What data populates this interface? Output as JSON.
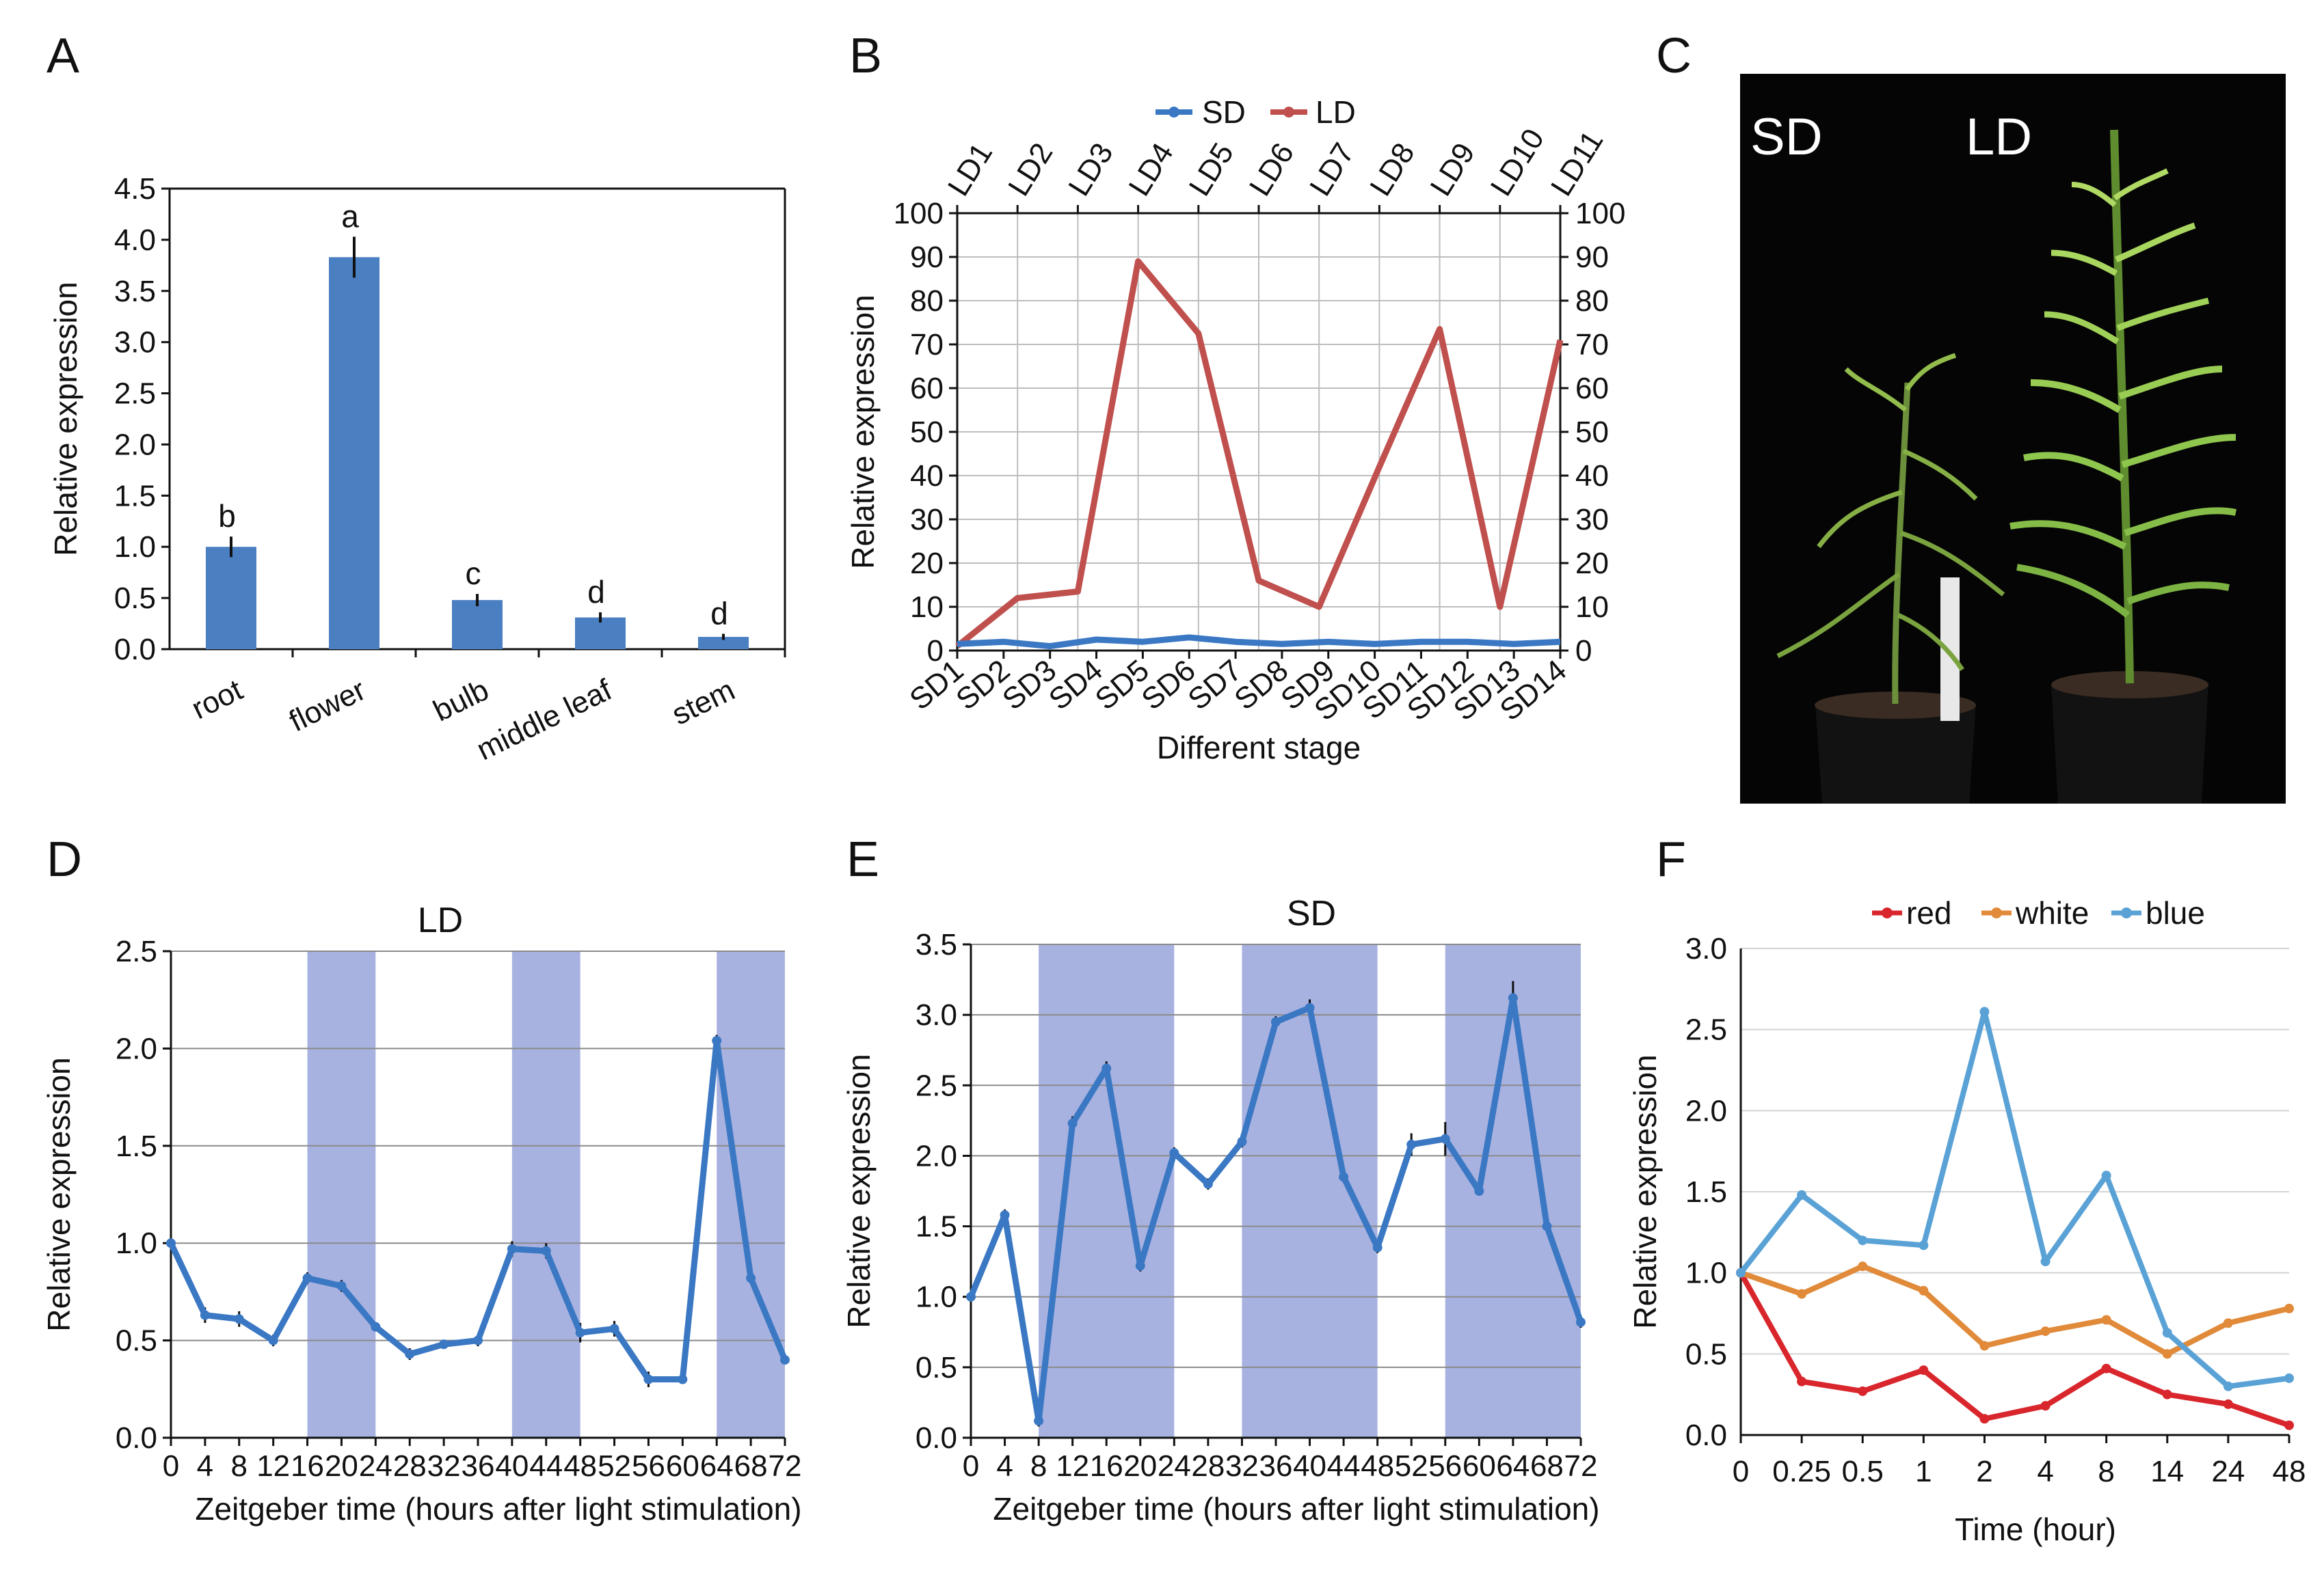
{
  "colors": {
    "bar_blue": "#4a7fc1",
    "line_blue": "#3b78c4",
    "line_red": "#c0504d",
    "line_orange": "#e08a3a",
    "line_light_blue": "#5aa2d6",
    "line_crimson": "#d9262c",
    "night_shade": "#a8b2e0",
    "photo_bg": "#050505"
  },
  "chart_data": [
    {
      "panel": "A",
      "type": "bar",
      "categories": [
        "root",
        "flower",
        "bulb",
        "middle leaf",
        "stem"
      ],
      "values": [
        1.0,
        3.83,
        0.48,
        0.31,
        0.12
      ],
      "errors": [
        0.1,
        0.2,
        0.06,
        0.05,
        0.03
      ],
      "significance": [
        "b",
        "a",
        "c",
        "d",
        "d"
      ],
      "ylabel": "Relative expression",
      "ylim": [
        0,
        4.5
      ],
      "yticks": [
        "0.0",
        "0.5",
        "1.0",
        "1.5",
        "2.0",
        "2.5",
        "3.0",
        "3.5",
        "4.0",
        "4.5"
      ],
      "grid": false
    },
    {
      "panel": "B",
      "type": "line",
      "series": [
        {
          "name": "SD",
          "x": [
            "SD1",
            "SD2",
            "SD3",
            "SD4",
            "SD5",
            "SD6",
            "SD7",
            "SD8",
            "SD9",
            "SD10",
            "SD11",
            "SD12",
            "SD13",
            "SD14"
          ],
          "values": [
            1.5,
            2,
            1,
            2.5,
            2,
            3,
            2,
            1.5,
            2,
            1.5,
            2,
            2,
            1.5,
            2
          ]
        },
        {
          "name": "LD",
          "x": [
            "LD1",
            "LD2",
            "LD3",
            "LD4",
            "LD5",
            "LD6",
            "LD7",
            "LD8",
            "LD9",
            "LD10",
            "LD11"
          ],
          "values": [
            1,
            12,
            13.5,
            89,
            72.5,
            16,
            10,
            42,
            73.5,
            10,
            71
          ]
        }
      ],
      "xlabel": "Different stage",
      "ylabel": "Relative expression",
      "ylim": [
        0,
        100
      ],
      "yticks": [
        "0",
        "10",
        "20",
        "30",
        "40",
        "50",
        "60",
        "70",
        "80",
        "90",
        "100"
      ],
      "legend": "top",
      "grid": true
    },
    {
      "panel": "D",
      "type": "line",
      "title": "LD",
      "x": [
        0,
        4,
        8,
        12,
        16,
        20,
        24,
        28,
        32,
        36,
        40,
        44,
        48,
        52,
        56,
        60,
        64,
        68,
        72
      ],
      "xticks": [
        "0",
        "4",
        "8",
        "12",
        "16",
        "20",
        "24",
        "28",
        "32",
        "36",
        "40",
        "44",
        "48",
        "52",
        "56",
        "60",
        "64",
        "68",
        "72"
      ],
      "values": [
        1.0,
        0.63,
        0.61,
        0.5,
        0.82,
        0.78,
        0.57,
        0.43,
        0.48,
        0.5,
        0.97,
        0.96,
        0.54,
        0.56,
        0.3,
        0.3,
        2.04,
        0.82,
        0.4
      ],
      "errors": [
        0.02,
        0.04,
        0.04,
        0.03,
        0.03,
        0.03,
        0.02,
        0.03,
        0.02,
        0.03,
        0.04,
        0.04,
        0.05,
        0.04,
        0.04,
        0.02,
        0.03,
        0.03,
        0.02
      ],
      "dark_periods": [
        [
          16,
          24
        ],
        [
          40,
          48
        ],
        [
          64,
          72
        ]
      ],
      "xlabel": "Zeitgeber time (hours after light stimulation)",
      "ylabel": "Relative expression",
      "ylim": [
        0,
        2.5
      ],
      "yticks": [
        "0.0",
        "0.5",
        "1.0",
        "1.5",
        "2.0",
        "2.5"
      ],
      "grid": true
    },
    {
      "panel": "E",
      "type": "line",
      "title": "SD",
      "x": [
        0,
        4,
        8,
        12,
        16,
        20,
        24,
        28,
        32,
        36,
        40,
        44,
        48,
        52,
        56,
        60,
        64,
        68,
        72
      ],
      "xticks": [
        "0",
        "4",
        "8",
        "12",
        "16",
        "20",
        "24",
        "28",
        "32",
        "36",
        "40",
        "44",
        "48",
        "52",
        "56",
        "60",
        "64",
        "68",
        "72"
      ],
      "values": [
        1.0,
        1.58,
        0.12,
        2.23,
        2.62,
        1.22,
        2.02,
        1.8,
        2.1,
        2.95,
        3.05,
        1.85,
        1.35,
        2.08,
        2.12,
        1.75,
        3.12,
        1.5,
        0.82
      ],
      "errors": [
        0.02,
        0.04,
        0.04,
        0.05,
        0.05,
        0.04,
        0.04,
        0.04,
        0.04,
        0.04,
        0.06,
        0.03,
        0.04,
        0.08,
        0.12,
        0.03,
        0.12,
        0.03,
        0.04
      ],
      "dark_periods": [
        [
          8,
          24
        ],
        [
          32,
          48
        ],
        [
          56,
          72
        ]
      ],
      "xlabel": "Zeitgeber time (hours after light stimulation)",
      "ylabel": "Relative expression",
      "ylim": [
        0,
        3.5
      ],
      "yticks": [
        "0.0",
        "0.5",
        "1.0",
        "1.5",
        "2.0",
        "2.5",
        "3.0",
        "3.5"
      ],
      "grid": true
    },
    {
      "panel": "F",
      "type": "line",
      "categories": [
        "0",
        "0.25",
        "0.5",
        "1",
        "2",
        "4",
        "8",
        "14",
        "24",
        "48"
      ],
      "series": [
        {
          "name": "red",
          "values": [
            1.0,
            0.33,
            0.27,
            0.4,
            0.1,
            0.18,
            0.41,
            0.25,
            0.19,
            0.06
          ]
        },
        {
          "name": "white",
          "values": [
            1.0,
            0.87,
            1.04,
            0.89,
            0.55,
            0.64,
            0.71,
            0.5,
            0.69,
            0.78
          ]
        },
        {
          "name": "blue",
          "values": [
            1.0,
            1.48,
            1.2,
            1.17,
            2.61,
            1.07,
            1.6,
            0.63,
            0.3,
            0.35
          ]
        }
      ],
      "xlabel": "Time (hour)",
      "ylabel": "Relative expression",
      "ylim": [
        0,
        3.0
      ],
      "yticks": [
        "0.0",
        "0.5",
        "1.0",
        "1.5",
        "2.0",
        "2.5",
        "3.0"
      ],
      "legend": "top",
      "grid": true
    }
  ],
  "panels": {
    "a": "A",
    "b": "B",
    "c": "C",
    "d": "D",
    "e": "E",
    "f": "F"
  },
  "photo": {
    "label_sd": "SD",
    "label_ld": "LD"
  }
}
